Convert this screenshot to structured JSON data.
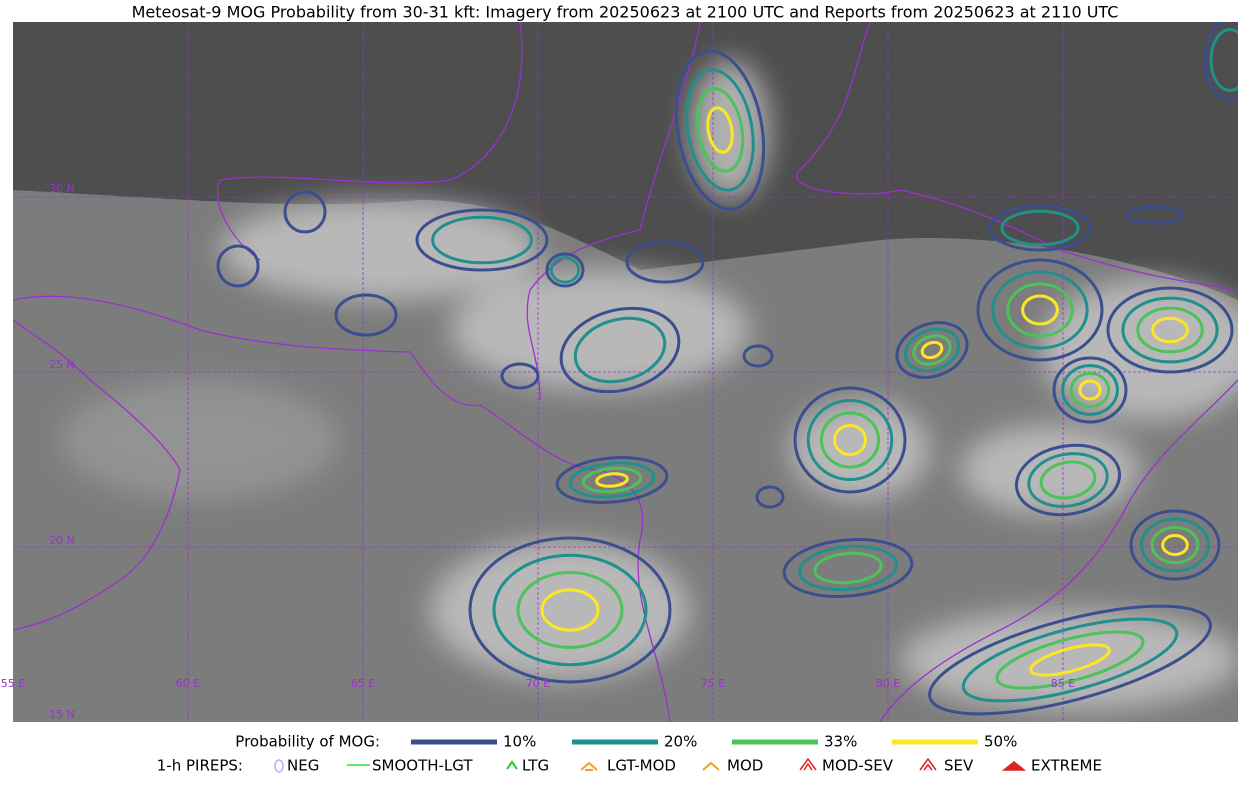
{
  "title": "Meteosat-9 MOG Probability from 30-31 kft: Imagery from 20250623 at 2100 UTC and Reports from 20250623 at 2110 UTC",
  "map": {
    "lat_labels": [
      "30 N",
      "25 N",
      "20 N",
      "15 N"
    ],
    "lon_labels": [
      "55 E",
      "60 E",
      "65 E",
      "70 E",
      "75 E",
      "80 E",
      "85 E"
    ]
  },
  "legend": {
    "probability_title": "Probability of MOG:",
    "levels": [
      {
        "label": "10%",
        "color": "#3b4f8f"
      },
      {
        "label": "20%",
        "color": "#21908d"
      },
      {
        "label": "33%",
        "color": "#4cc25a"
      },
      {
        "label": "50%",
        "color": "#fde725"
      }
    ],
    "pireps_title": "1-h PIREPS:",
    "pireps": [
      "NEG",
      "SMOOTH-LGT",
      "LTG",
      "LGT-MOD",
      "MOD",
      "MOD-SEV",
      "SEV",
      "EXTREME"
    ]
  }
}
